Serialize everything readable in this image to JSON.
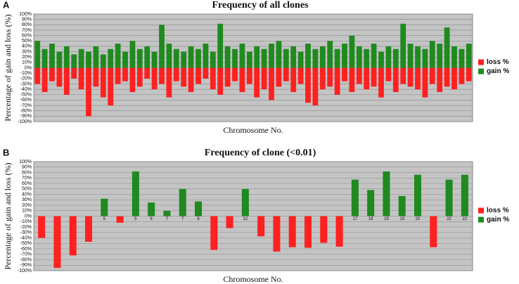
{
  "chart_data": [
    {
      "type": "bar",
      "panel_label": "A",
      "title": "Frequency of all clones",
      "ylabel": "Percentage of gain and loss (%)",
      "xlabel": "Chromosome No.",
      "grid": true,
      "legend": "right",
      "ylim": [
        -100,
        100
      ],
      "yticks": [
        {
          "value": -100,
          "label": "-100%"
        },
        {
          "value": -90,
          "label": "-90%"
        },
        {
          "value": -80,
          "label": "-80%"
        },
        {
          "value": -70,
          "label": "-70%"
        },
        {
          "value": -60,
          "label": "-60%"
        },
        {
          "value": -50,
          "label": "-50%"
        },
        {
          "value": -40,
          "label": "-40%"
        },
        {
          "value": -30,
          "label": "-30%"
        },
        {
          "value": -20,
          "label": "-20%"
        },
        {
          "value": -10,
          "label": "-10%"
        },
        {
          "value": 0,
          "label": "0%"
        },
        {
          "value": 10,
          "label": "10%"
        },
        {
          "value": 20,
          "label": "20%"
        },
        {
          "value": 30,
          "label": "30%"
        },
        {
          "value": 40,
          "label": "40%"
        },
        {
          "value": 50,
          "label": "50%"
        },
        {
          "value": 60,
          "label": "60%"
        },
        {
          "value": 70,
          "label": "70%"
        },
        {
          "value": 80,
          "label": "80%"
        },
        {
          "value": 90,
          "label": "90%"
        },
        {
          "value": 100,
          "label": "100%"
        }
      ],
      "series": [
        {
          "name": "loss %",
          "color": "#ff2020",
          "values": [
            -30,
            -45,
            -25,
            -35,
            -50,
            -20,
            -40,
            -90,
            -35,
            -55,
            -70,
            -30,
            -25,
            -45,
            -35,
            -20,
            -40,
            -30,
            -55,
            -25,
            -35,
            -45,
            -30,
            -20,
            -40,
            -50,
            -35,
            -25,
            -45,
            -30,
            -55,
            -40,
            -60,
            -35,
            -25,
            -45,
            -30,
            -65,
            -70,
            -40,
            -35,
            -50,
            -25,
            -45,
            -30,
            -40,
            -35,
            -55,
            -25,
            -45,
            -30,
            -35,
            -40,
            -55,
            -30,
            -45,
            -35,
            -40,
            -30,
            -25
          ]
        },
        {
          "name": "gain %",
          "color": "#1f8a1f",
          "values": [
            50,
            35,
            45,
            30,
            40,
            25,
            35,
            30,
            40,
            25,
            35,
            45,
            30,
            50,
            35,
            40,
            30,
            80,
            45,
            35,
            30,
            40,
            35,
            45,
            30,
            82,
            40,
            35,
            45,
            30,
            40,
            35,
            45,
            50,
            35,
            40,
            30,
            45,
            35,
            40,
            50,
            35,
            45,
            60,
            40,
            35,
            45,
            30,
            40,
            35,
            82,
            45,
            40,
            35,
            50,
            45,
            75,
            40,
            35,
            45
          ]
        }
      ]
    },
    {
      "type": "bar",
      "panel_label": "B",
      "title": "Frequency of clone (<0.01)",
      "ylabel": "Percentage of gain and loss (%)",
      "xlabel": "Chromosome No.",
      "grid": true,
      "legend": "right",
      "ylim": [
        -100,
        100
      ],
      "yticks": [
        {
          "value": -100,
          "label": "-100%"
        },
        {
          "value": -90,
          "label": "-90%"
        },
        {
          "value": -80,
          "label": "-80%"
        },
        {
          "value": -70,
          "label": "-70%"
        },
        {
          "value": -60,
          "label": "-60%"
        },
        {
          "value": -50,
          "label": "-50%"
        },
        {
          "value": -40,
          "label": "-40%"
        },
        {
          "value": -30,
          "label": "-30%"
        },
        {
          "value": -20,
          "label": "-20%"
        },
        {
          "value": -10,
          "label": "-10%"
        },
        {
          "value": 0,
          "label": "0%"
        },
        {
          "value": 10,
          "label": "10%"
        },
        {
          "value": 20,
          "label": "20%"
        },
        {
          "value": 30,
          "label": "30%"
        },
        {
          "value": 40,
          "label": "40%"
        },
        {
          "value": 50,
          "label": "50%"
        },
        {
          "value": 60,
          "label": "60%"
        },
        {
          "value": 70,
          "label": "70%"
        },
        {
          "value": 80,
          "label": "80%"
        },
        {
          "value": 90,
          "label": "90%"
        },
        {
          "value": 100,
          "label": "100%"
        }
      ],
      "categories": [
        "1",
        "2",
        "3",
        "4",
        "5",
        "6",
        "5",
        "6",
        "7",
        "7",
        "8",
        null,
        "11",
        "12",
        "13",
        "13",
        "13",
        "14",
        "14",
        "16",
        "17",
        "18",
        "19",
        "19",
        "20",
        "21",
        "22",
        "22"
      ],
      "series": [
        {
          "name": "loss %",
          "color": "#ff2020",
          "values": [
            -40,
            -95,
            -72,
            -47,
            null,
            -12,
            null,
            null,
            null,
            null,
            null,
            -62,
            -22,
            null,
            -37,
            -65,
            -57,
            -58,
            -49,
            -56,
            null,
            null,
            null,
            null,
            null,
            -57,
            null,
            null
          ]
        },
        {
          "name": "gain %",
          "color": "#1f8a1f",
          "values": [
            null,
            null,
            null,
            null,
            32,
            null,
            82,
            25,
            10,
            50,
            27,
            null,
            null,
            50,
            null,
            null,
            null,
            null,
            null,
            null,
            67,
            48,
            82,
            37,
            76,
            null,
            67,
            76
          ]
        }
      ]
    }
  ]
}
